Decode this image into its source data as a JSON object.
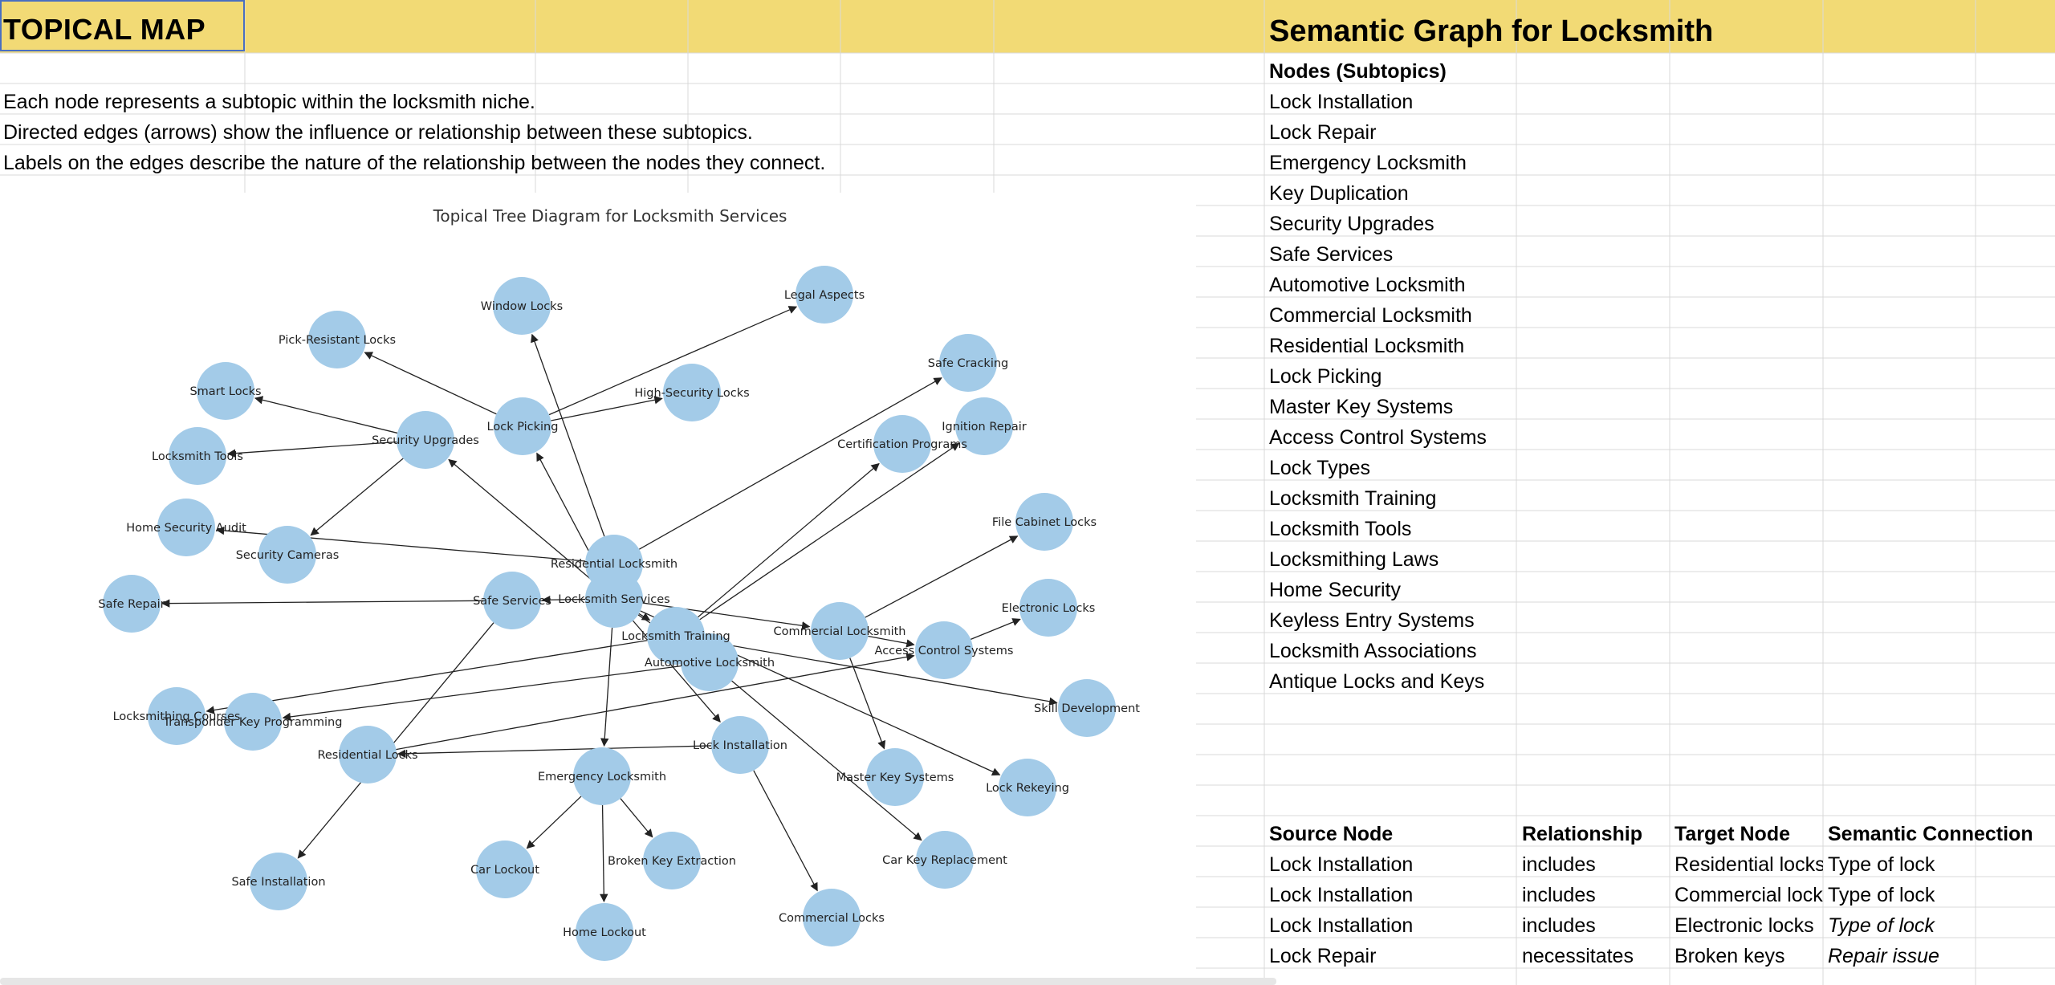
{
  "left_title": "TOPICAL MAP",
  "right_title": "Semantic Graph for Locksmith",
  "descriptions": [
    "Each node represents a subtopic within the locksmith niche.",
    "Directed edges (arrows) show the influence or relationship between these subtopics.",
    "Labels on the edges describe the nature of the relationship between the nodes they connect."
  ],
  "nodes_header": "Nodes (Subtopics)",
  "nodes_list": [
    "Lock Installation",
    "Lock Repair",
    "Emergency Locksmith",
    "Key Duplication",
    "Security Upgrades",
    "Safe Services",
    "Automotive Locksmith",
    "Commercial Locksmith",
    "Residential Locksmith",
    "Lock Picking",
    "Master Key Systems",
    "Access Control Systems",
    "Lock Types",
    "Locksmith Training",
    "Locksmith Tools",
    "Locksmithing Laws",
    "Home Security",
    "Keyless Entry Systems",
    "Locksmith Associations",
    "Antique Locks and Keys"
  ],
  "relations_table": {
    "headers": [
      "Source Node",
      "Relationship",
      "Target Node",
      "Semantic Connection"
    ],
    "rows": [
      [
        "Lock Installation",
        "includes",
        "Residential locks",
        "Type of lock"
      ],
      [
        "Lock Installation",
        "includes",
        "Commercial locks",
        "Type of lock"
      ],
      [
        "Lock Installation",
        "includes",
        "Electronic locks",
        "Type of lock"
      ],
      [
        "Lock Repair",
        "necessitates",
        "Broken keys",
        "Repair issue"
      ]
    ]
  },
  "diagram": {
    "title": "Topical Tree Diagram for Locksmith Services",
    "node_color": "#a3cbe8",
    "nodes": [
      "Window Locks",
      "Legal Aspects",
      "Pick-Resistant Locks",
      "Smart Locks",
      "High-Security Locks",
      "Safe Cracking",
      "Lock Picking",
      "Security Upgrades",
      "Locksmith Tools",
      "Ignition Repair",
      "Certification Programs",
      "Home Security Audit",
      "Security Cameras",
      "File Cabinet Locks",
      "Residential Locksmith",
      "Safe Repair",
      "Safe Services",
      "Locksmith Services",
      "Electronic Locks",
      "Commercial Locksmith",
      "Locksmith Training",
      "Access Control Systems",
      "Automotive Locksmith",
      "Skill Development",
      "Locksmithing Courses",
      "Transponder Key Programming",
      "Residential Locks",
      "Lock Installation",
      "Emergency Locksmith",
      "Master Key Systems",
      "Lock Rekeying",
      "Broken Key Extraction",
      "Car Key Replacement",
      "Car Lockout",
      "Safe Installation",
      "Commercial Locks",
      "Home Lockout"
    ]
  }
}
